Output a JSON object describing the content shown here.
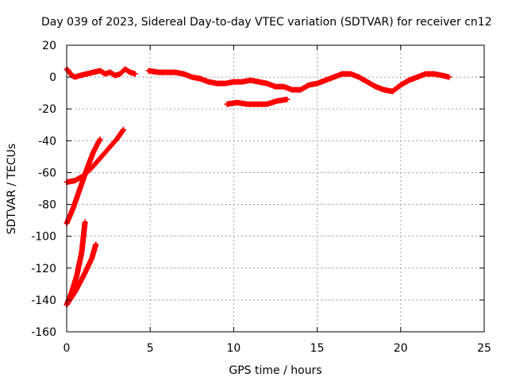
{
  "chart_data": {
    "type": "scatter",
    "title": "Day 039 of 2023, Sidereal Day-to-day VTEC variation (SDTVAR) for receiver cn12",
    "xlabel": "GPS time / hours",
    "ylabel": "SDTVAR / TECUs",
    "xlim": [
      0,
      25
    ],
    "ylim": [
      -160,
      20
    ],
    "xticks": [
      0,
      5,
      10,
      15,
      20,
      25
    ],
    "yticks": [
      -160,
      -140,
      -120,
      -100,
      -80,
      -60,
      -40,
      -20,
      0,
      20
    ],
    "grid": true,
    "marker": "plus",
    "color": "#ff0000",
    "series": [
      {
        "name": "arc-main-1",
        "points": [
          [
            0.0,
            5
          ],
          [
            0.1,
            4
          ],
          [
            0.3,
            1
          ],
          [
            0.5,
            0
          ],
          [
            0.8,
            1
          ],
          [
            1.2,
            2
          ],
          [
            1.6,
            3
          ],
          [
            2.0,
            4
          ],
          [
            2.3,
            2
          ],
          [
            2.6,
            3
          ],
          [
            2.9,
            1
          ],
          [
            3.2,
            2
          ],
          [
            3.5,
            5
          ],
          [
            3.8,
            3
          ],
          [
            4.1,
            2
          ]
        ]
      },
      {
        "name": "arc-main-2",
        "points": [
          [
            4.9,
            4
          ],
          [
            5.5,
            3
          ],
          [
            6.0,
            3
          ],
          [
            6.5,
            3
          ],
          [
            7.0,
            2
          ],
          [
            7.5,
            0
          ],
          [
            8.0,
            -1
          ],
          [
            8.5,
            -3
          ],
          [
            9.0,
            -4
          ],
          [
            9.5,
            -4
          ],
          [
            10.0,
            -3
          ],
          [
            10.5,
            -3
          ],
          [
            11.0,
            -2
          ],
          [
            11.5,
            -3
          ],
          [
            12.0,
            -4
          ],
          [
            12.5,
            -6
          ],
          [
            13.0,
            -6
          ],
          [
            13.5,
            -8
          ],
          [
            14.0,
            -8
          ],
          [
            14.5,
            -5
          ],
          [
            15.0,
            -4
          ],
          [
            15.5,
            -2
          ],
          [
            16.0,
            0
          ],
          [
            16.5,
            2
          ],
          [
            17.0,
            2
          ],
          [
            17.5,
            0
          ],
          [
            18.0,
            -3
          ],
          [
            18.5,
            -6
          ],
          [
            19.0,
            -8
          ],
          [
            19.5,
            -9
          ],
          [
            20.0,
            -5
          ],
          [
            20.5,
            -2
          ],
          [
            21.0,
            0
          ],
          [
            21.5,
            2
          ],
          [
            22.0,
            2
          ],
          [
            22.5,
            1
          ],
          [
            22.9,
            0
          ]
        ]
      },
      {
        "name": "arc-mid",
        "points": [
          [
            9.6,
            -17
          ],
          [
            10.2,
            -16
          ],
          [
            10.8,
            -17
          ],
          [
            11.4,
            -17
          ],
          [
            12.0,
            -17
          ],
          [
            12.6,
            -15
          ],
          [
            13.2,
            -14
          ]
        ]
      },
      {
        "name": "arc-rise-a",
        "points": [
          [
            0.0,
            -66
          ],
          [
            0.5,
            -65
          ],
          [
            1.0,
            -62
          ],
          [
            1.5,
            -57
          ],
          [
            2.0,
            -51
          ],
          [
            2.5,
            -45
          ],
          [
            3.0,
            -39
          ],
          [
            3.4,
            -33
          ]
        ]
      },
      {
        "name": "arc-rise-b",
        "points": [
          [
            0.0,
            -92
          ],
          [
            0.4,
            -82
          ],
          [
            0.8,
            -70
          ],
          [
            1.2,
            -58
          ],
          [
            1.6,
            -47
          ],
          [
            2.0,
            -39
          ]
        ]
      },
      {
        "name": "arc-rise-c",
        "points": [
          [
            0.0,
            -143
          ],
          [
            0.3,
            -135
          ],
          [
            0.6,
            -125
          ],
          [
            0.9,
            -110
          ],
          [
            1.1,
            -91
          ]
        ]
      },
      {
        "name": "arc-rise-d",
        "points": [
          [
            0.0,
            -143
          ],
          [
            0.5,
            -135
          ],
          [
            1.0,
            -125
          ],
          [
            1.5,
            -114
          ],
          [
            1.75,
            -105
          ]
        ]
      }
    ]
  }
}
